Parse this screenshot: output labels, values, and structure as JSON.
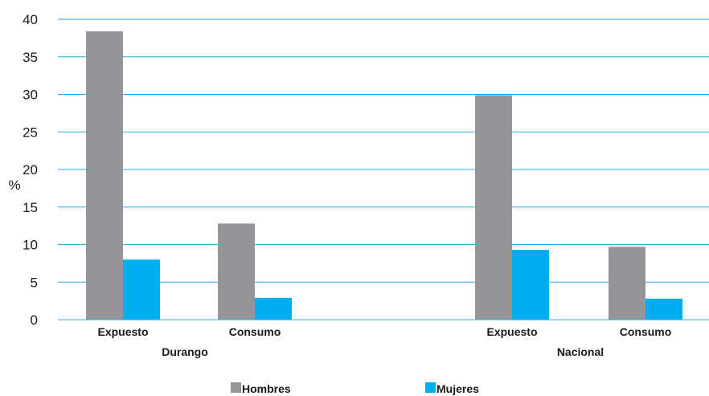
{
  "chart_data": {
    "type": "bar",
    "ylabel": "%",
    "ylim": [
      0,
      40
    ],
    "yticks": [
      0,
      5,
      10,
      15,
      20,
      25,
      30,
      35,
      40
    ],
    "grid": true,
    "legend_position": "bottom",
    "groups": [
      {
        "name": "Durango",
        "categories": [
          "Expuesto",
          "Consumo"
        ]
      },
      {
        "name": "Nacional",
        "categories": [
          "Expuesto",
          "Consumo"
        ]
      }
    ],
    "series": [
      {
        "name": "Hombres",
        "color": "#939598",
        "values": [
          38.4,
          12.8,
          29.9,
          9.7
        ]
      },
      {
        "name": "Mujeres",
        "color": "#00aeef",
        "values": [
          8.0,
          2.9,
          9.3,
          2.8
        ]
      }
    ],
    "grid_color": "#29abe2"
  }
}
